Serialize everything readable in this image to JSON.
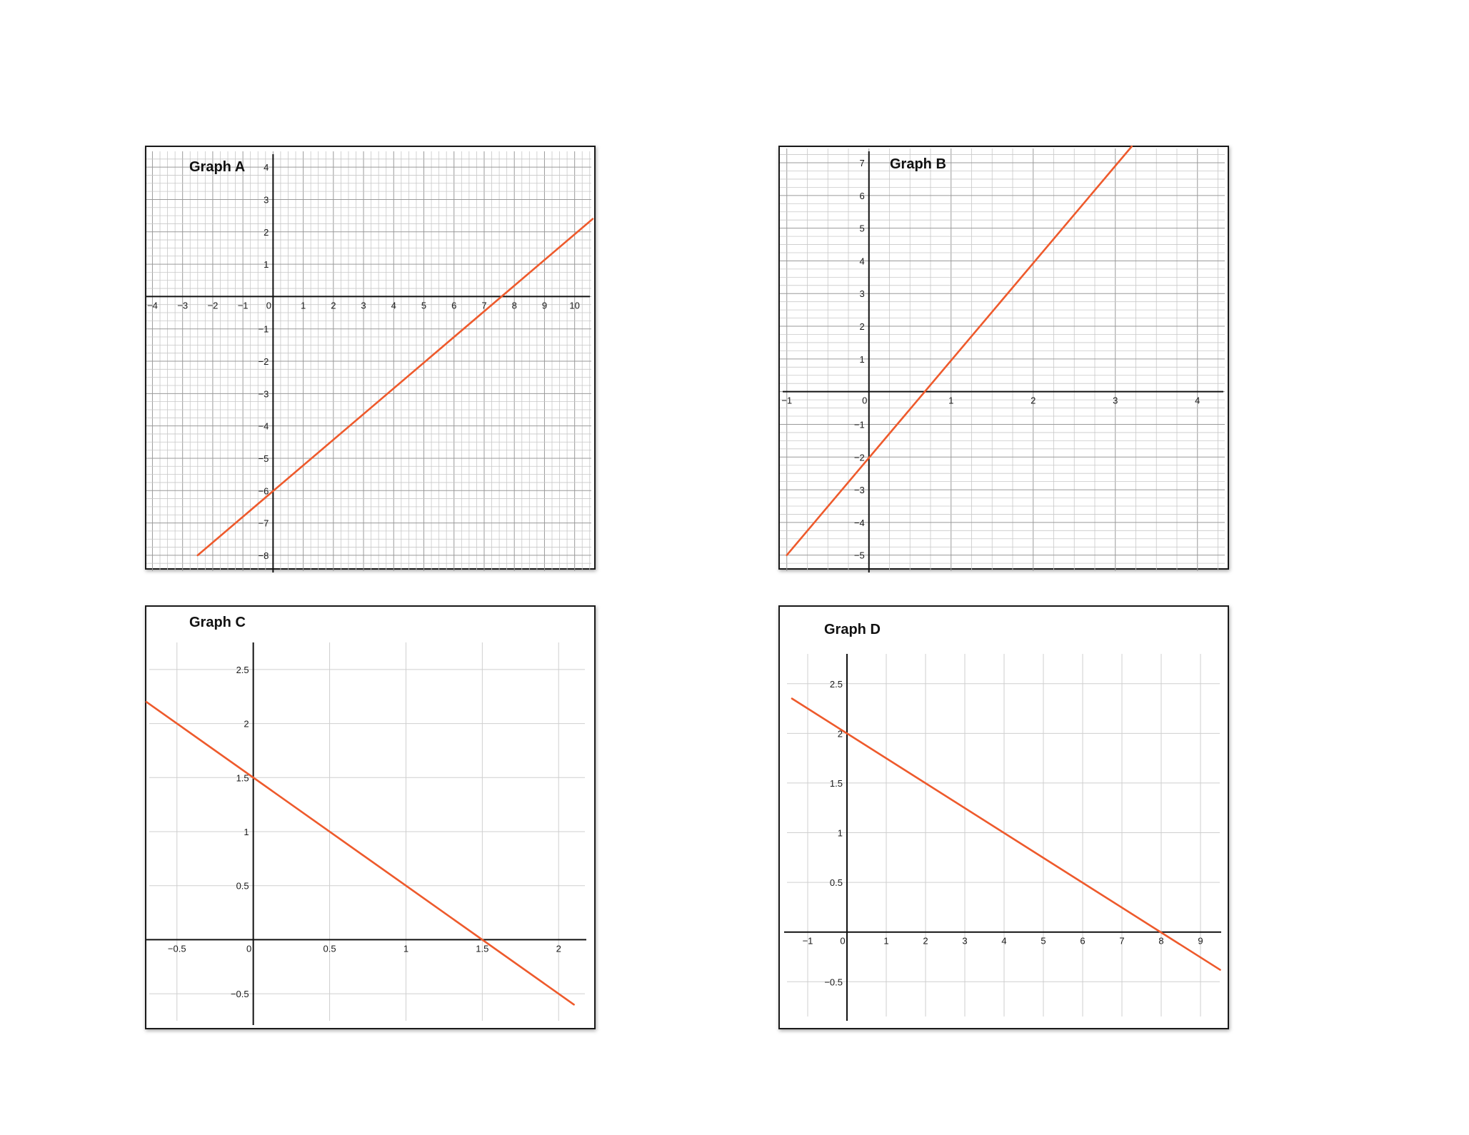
{
  "chart_data": [
    {
      "type": "line",
      "title": "Graph A",
      "x_ticks": [
        "−4",
        "−3",
        "−2",
        "−1",
        "0",
        "1",
        "2",
        "3",
        "4",
        "5",
        "6",
        "7",
        "8",
        "9",
        "10"
      ],
      "y_ticks": [
        "4",
        "3",
        "2",
        "1",
        "−1",
        "−2",
        "−3",
        "−4",
        "−5",
        "−6",
        "−7",
        "−8"
      ],
      "xlim": [
        -4.2,
        10.6
      ],
      "ylim": [
        -8.4,
        4.4
      ],
      "grid": "minor",
      "series": [
        {
          "x": [
            -2.5,
            10.6
          ],
          "y": [
            -8.0,
            2.4
          ]
        }
      ],
      "line_color": "#ee5a2c"
    },
    {
      "type": "line",
      "title": "Graph B",
      "x_ticks": [
        "−1",
        "0",
        "1",
        "2",
        "3",
        "4"
      ],
      "y_ticks": [
        "7",
        "6",
        "5",
        "4",
        "3",
        "2",
        "1",
        "−1",
        "−2",
        "−3",
        "−4",
        "−5"
      ],
      "xlim": [
        -1.05,
        4.35
      ],
      "ylim": [
        -5.4,
        7.35
      ],
      "grid": "minor",
      "series": [
        {
          "x": [
            -1.0,
            3.2
          ],
          "y": [
            -5.0,
            7.5
          ]
        }
      ],
      "line_color": "#ee5a2c"
    },
    {
      "type": "line",
      "title": "Graph C",
      "x_ticks": [
        "−0.5",
        "0",
        "0.5",
        "1",
        "1.5",
        "2"
      ],
      "y_ticks": [
        "2.5",
        "2",
        "1.5",
        "1",
        "0.5",
        "−0.5"
      ],
      "xlim": [
        -0.7,
        2.2
      ],
      "ylim": [
        -0.75,
        2.75
      ],
      "grid": "major",
      "series": [
        {
          "x": [
            -0.7,
            2.1
          ],
          "y": [
            2.2,
            -0.6
          ]
        }
      ],
      "line_color": "#ee5a2c"
    },
    {
      "type": "line",
      "title": "Graph D",
      "x_ticks": [
        "−1",
        "0",
        "1",
        "2",
        "3",
        "4",
        "5",
        "6",
        "7",
        "8",
        "9"
      ],
      "y_ticks": [
        "2.5",
        "2",
        "1.5",
        "1",
        "0.5",
        "−0.5"
      ],
      "xlim": [
        -1.6,
        9.6
      ],
      "ylim": [
        -0.85,
        2.8
      ],
      "grid": "major",
      "series": [
        {
          "x": [
            -1.4,
            9.5
          ],
          "y": [
            2.35,
            -0.38
          ]
        }
      ],
      "line_color": "#ee5a2c"
    }
  ]
}
